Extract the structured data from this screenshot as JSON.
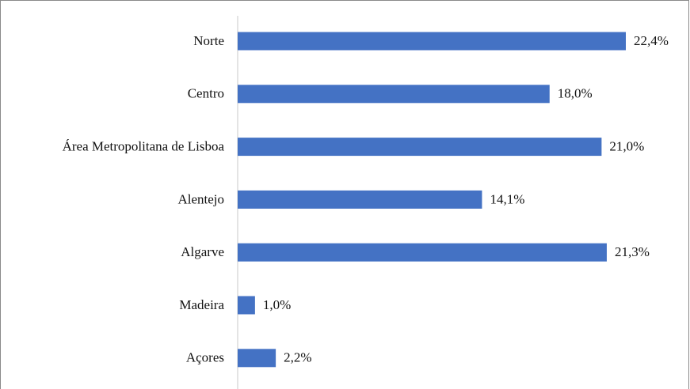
{
  "chart_data": {
    "type": "bar",
    "orientation": "horizontal",
    "categories": [
      "Norte",
      "Centro",
      "Área Metropolitana de Lisboa",
      "Alentejo",
      "Algarve",
      "Madeira",
      "Açores"
    ],
    "values": [
      22.4,
      18.0,
      21.0,
      14.1,
      21.3,
      1.0,
      2.2
    ],
    "value_labels": [
      "22,4%",
      "18,0%",
      "21,0%",
      "14,1%",
      "21,3%",
      "1,0%",
      "2,2%"
    ],
    "color": "#4472c4"
  }
}
